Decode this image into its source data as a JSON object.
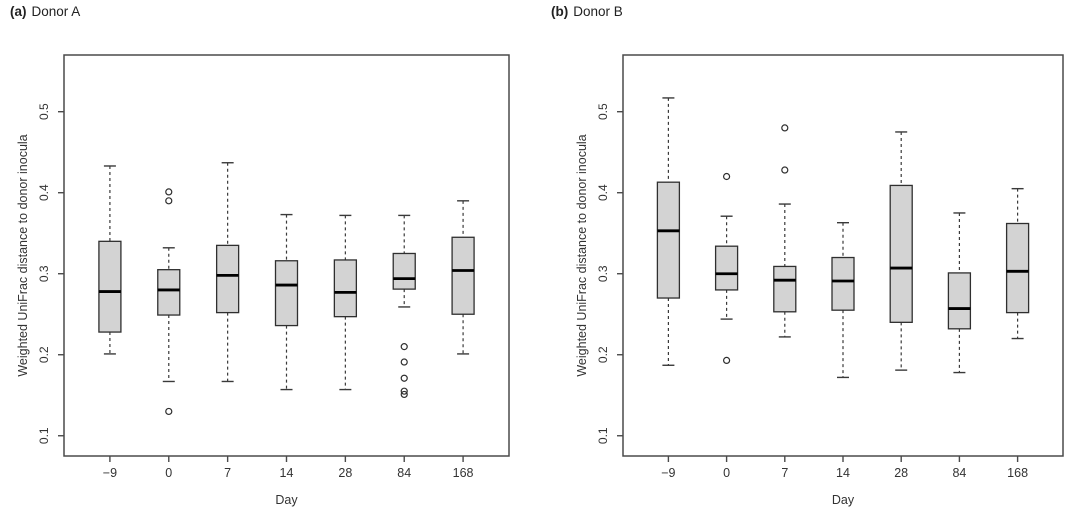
{
  "figure": {
    "background": "#ffffff"
  },
  "colors": {
    "box_fill": "#d3d3d3",
    "box_border": "#2f2f2f",
    "frame": "#4a4a4a",
    "whisker": "#3a3a3a",
    "median": "#000000",
    "text": "#333333"
  },
  "chart_data": [
    {
      "type": "boxplot",
      "panel_label": "(a)",
      "title": "Donor A",
      "xlabel": "Day",
      "ylabel": "Weighted UniFrac distance to donor inocula",
      "categories": [
        "−9",
        "0",
        "7",
        "14",
        "28",
        "84",
        "168"
      ],
      "ylim": [
        0.075,
        0.57
      ],
      "yticks": [
        "0.1",
        "0.2",
        "0.3",
        "0.4",
        "0.5"
      ],
      "grid": false,
      "legend": null,
      "boxes": [
        {
          "day": "−9",
          "whisker_low": 0.201,
          "q1": 0.228,
          "median": 0.278,
          "q3": 0.34,
          "whisker_high": 0.433,
          "outliers": []
        },
        {
          "day": "0",
          "whisker_low": 0.167,
          "q1": 0.249,
          "median": 0.28,
          "q3": 0.305,
          "whisker_high": 0.332,
          "outliers": [
            0.401,
            0.39,
            0.13
          ]
        },
        {
          "day": "7",
          "whisker_low": 0.167,
          "q1": 0.252,
          "median": 0.298,
          "q3": 0.335,
          "whisker_high": 0.437,
          "outliers": []
        },
        {
          "day": "14",
          "whisker_low": 0.157,
          "q1": 0.236,
          "median": 0.286,
          "q3": 0.316,
          "whisker_high": 0.373,
          "outliers": []
        },
        {
          "day": "28",
          "whisker_low": 0.157,
          "q1": 0.247,
          "median": 0.277,
          "q3": 0.317,
          "whisker_high": 0.372,
          "outliers": []
        },
        {
          "day": "84",
          "whisker_low": 0.259,
          "q1": 0.281,
          "median": 0.294,
          "q3": 0.325,
          "whisker_high": 0.372,
          "outliers": [
            0.21,
            0.191,
            0.171,
            0.155,
            0.151
          ]
        },
        {
          "day": "168",
          "whisker_low": 0.201,
          "q1": 0.25,
          "median": 0.304,
          "q3": 0.345,
          "whisker_high": 0.39,
          "outliers": []
        }
      ]
    },
    {
      "type": "boxplot",
      "panel_label": "(b)",
      "title": "Donor B",
      "xlabel": "Day",
      "ylabel": "Weighted UniFrac distance to donor inocula",
      "categories": [
        "−9",
        "0",
        "7",
        "14",
        "28",
        "84",
        "168"
      ],
      "ylim": [
        0.075,
        0.57
      ],
      "yticks": [
        "0.1",
        "0.2",
        "0.3",
        "0.4",
        "0.5"
      ],
      "grid": false,
      "legend": null,
      "boxes": [
        {
          "day": "−9",
          "whisker_low": 0.187,
          "q1": 0.27,
          "median": 0.353,
          "q3": 0.413,
          "whisker_high": 0.517,
          "outliers": []
        },
        {
          "day": "0",
          "whisker_low": 0.244,
          "q1": 0.28,
          "median": 0.3,
          "q3": 0.334,
          "whisker_high": 0.371,
          "outliers": [
            0.42,
            0.193
          ]
        },
        {
          "day": "7",
          "whisker_low": 0.222,
          "q1": 0.253,
          "median": 0.292,
          "q3": 0.309,
          "whisker_high": 0.386,
          "outliers": [
            0.48,
            0.428
          ]
        },
        {
          "day": "14",
          "whisker_low": 0.172,
          "q1": 0.255,
          "median": 0.291,
          "q3": 0.32,
          "whisker_high": 0.363,
          "outliers": []
        },
        {
          "day": "28",
          "whisker_low": 0.181,
          "q1": 0.24,
          "median": 0.307,
          "q3": 0.409,
          "whisker_high": 0.475,
          "outliers": []
        },
        {
          "day": "84",
          "whisker_low": 0.178,
          "q1": 0.232,
          "median": 0.257,
          "q3": 0.301,
          "whisker_high": 0.375,
          "outliers": []
        },
        {
          "day": "168",
          "whisker_low": 0.22,
          "q1": 0.252,
          "median": 0.303,
          "q3": 0.362,
          "whisker_high": 0.405,
          "outliers": []
        }
      ]
    }
  ]
}
